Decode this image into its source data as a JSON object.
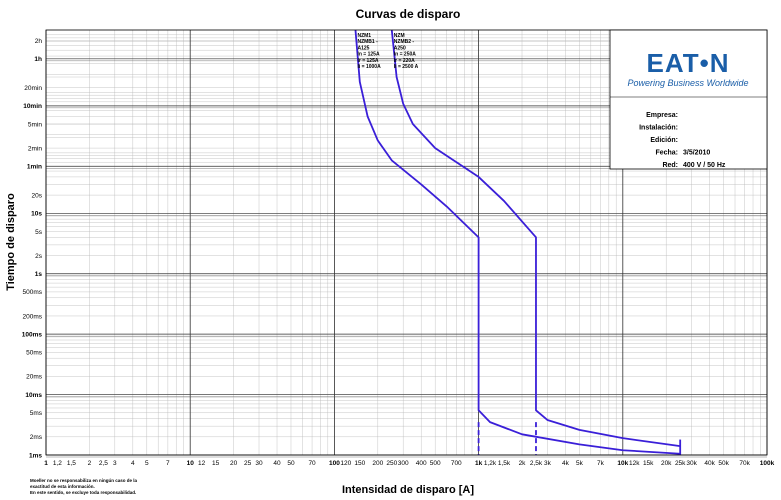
{
  "chart_data": {
    "type": "line",
    "title": "Curvas de disparo",
    "xlabel": "Intensidad de disparo [A]",
    "ylabel": "Tiempo de disparo",
    "x_scale": "log",
    "y_scale": "log",
    "xlim": [
      1,
      100000
    ],
    "ylim_seconds": [
      0.001,
      10800
    ],
    "grid": true,
    "x_ticks": [
      {
        "v": 1,
        "label": "1",
        "major": true
      },
      {
        "v": 1.2,
        "label": "1,2"
      },
      {
        "v": 1.5,
        "label": "1,5"
      },
      {
        "v": 2,
        "label": "2"
      },
      {
        "v": 2.5,
        "label": "2,5"
      },
      {
        "v": 3,
        "label": "3"
      },
      {
        "v": 4,
        "label": "4"
      },
      {
        "v": 5,
        "label": "5"
      },
      {
        "v": 7,
        "label": "7"
      },
      {
        "v": 10,
        "label": "10",
        "major": true
      },
      {
        "v": 12,
        "label": "12"
      },
      {
        "v": 15,
        "label": "15"
      },
      {
        "v": 20,
        "label": "20"
      },
      {
        "v": 25,
        "label": "25"
      },
      {
        "v": 30,
        "label": "30"
      },
      {
        "v": 40,
        "label": "40"
      },
      {
        "v": 50,
        "label": "50"
      },
      {
        "v": 70,
        "label": "70"
      },
      {
        "v": 100,
        "label": "100",
        "major": true
      },
      {
        "v": 120,
        "label": "120"
      },
      {
        "v": 150,
        "label": "150"
      },
      {
        "v": 200,
        "label": "200"
      },
      {
        "v": 250,
        "label": "250"
      },
      {
        "v": 300,
        "label": "300"
      },
      {
        "v": 400,
        "label": "400"
      },
      {
        "v": 500,
        "label": "500"
      },
      {
        "v": 700,
        "label": "700"
      },
      {
        "v": 1000,
        "label": "1k",
        "major": true
      },
      {
        "v": 1200,
        "label": "1,2k"
      },
      {
        "v": 1500,
        "label": "1,5k"
      },
      {
        "v": 2000,
        "label": "2k"
      },
      {
        "v": 2500,
        "label": "2,5k"
      },
      {
        "v": 3000,
        "label": "3k"
      },
      {
        "v": 4000,
        "label": "4k"
      },
      {
        "v": 5000,
        "label": "5k"
      },
      {
        "v": 7000,
        "label": "7k"
      },
      {
        "v": 10000,
        "label": "10k",
        "major": true
      },
      {
        "v": 12000,
        "label": "12k"
      },
      {
        "v": 15000,
        "label": "15k"
      },
      {
        "v": 20000,
        "label": "20k"
      },
      {
        "v": 25000,
        "label": "25k"
      },
      {
        "v": 30000,
        "label": "30k"
      },
      {
        "v": 40000,
        "label": "40k"
      },
      {
        "v": 50000,
        "label": "50k"
      },
      {
        "v": 70000,
        "label": "70k"
      },
      {
        "v": 100000,
        "label": "100k",
        "major": true
      }
    ],
    "y_ticks": [
      {
        "v": 0.001,
        "label": "1ms",
        "major": true
      },
      {
        "v": 0.002,
        "label": "2ms"
      },
      {
        "v": 0.005,
        "label": "5ms"
      },
      {
        "v": 0.01,
        "label": "10ms",
        "major": true
      },
      {
        "v": 0.02,
        "label": "20ms"
      },
      {
        "v": 0.05,
        "label": "50ms"
      },
      {
        "v": 0.1,
        "label": "100ms",
        "major": true
      },
      {
        "v": 0.2,
        "label": "200ms"
      },
      {
        "v": 0.5,
        "label": "500ms"
      },
      {
        "v": 1,
        "label": "1s",
        "major": true
      },
      {
        "v": 2,
        "label": "2s"
      },
      {
        "v": 5,
        "label": "5s"
      },
      {
        "v": 10,
        "label": "10s",
        "major": true
      },
      {
        "v": 20,
        "label": "20s"
      },
      {
        "v": 60,
        "label": "1min",
        "major": true
      },
      {
        "v": 120,
        "label": "2min"
      },
      {
        "v": 300,
        "label": "5min"
      },
      {
        "v": 600,
        "label": "10min",
        "major": true
      },
      {
        "v": 1200,
        "label": "20min"
      },
      {
        "v": 3600,
        "label": "1h",
        "major": true
      },
      {
        "v": 7200,
        "label": "2h"
      }
    ],
    "series": [
      {
        "name": "NZM1 - NZMB1 - A125",
        "label_lines": [
          "NZM1",
          "NZMB1 -",
          "A125",
          "In = 125A",
          "Ir = 125A",
          "Ii = 1000A"
        ],
        "color": "#3a1fd8",
        "points": [
          [
            140,
            10800
          ],
          [
            150,
            1500
          ],
          [
            170,
            400
          ],
          [
            200,
            160
          ],
          [
            250,
            75
          ],
          [
            400,
            30
          ],
          [
            600,
            13
          ],
          [
            1000,
            4
          ],
          [
            1000,
            0.0055
          ],
          [
            1200,
            0.0035
          ],
          [
            2000,
            0.0022
          ],
          [
            5000,
            0.0015
          ],
          [
            10000,
            0.0012
          ],
          [
            25000,
            0.00105
          ]
        ]
      },
      {
        "name": "NZM - NZMB2 - A250",
        "label_lines": [
          "NZM",
          "NZMB2 -",
          "A250",
          "In = 250A",
          "Ir = 220A",
          "Ii = 2500 A"
        ],
        "color": "#3a1fd8",
        "points": [
          [
            250,
            10800
          ],
          [
            270,
            1800
          ],
          [
            300,
            650
          ],
          [
            350,
            300
          ],
          [
            500,
            120
          ],
          [
            1000,
            40
          ],
          [
            1500,
            16
          ],
          [
            2500,
            4
          ],
          [
            2500,
            0.0055
          ],
          [
            3000,
            0.0038
          ],
          [
            5000,
            0.0026
          ],
          [
            10000,
            0.0019
          ],
          [
            25000,
            0.0014
          ]
        ]
      }
    ]
  },
  "info_box": {
    "logo_text": "EAT•N",
    "tagline": "Powering Business Worldwide",
    "fields": [
      {
        "label": "Empresa:",
        "value": ""
      },
      {
        "label": "Instalación:",
        "value": ""
      },
      {
        "label": "Edición:",
        "value": ""
      },
      {
        "label": "Fecha:",
        "value": "3/5/2010"
      },
      {
        "label": "Red:",
        "value": "400 V / 50 Hz"
      }
    ]
  },
  "disclaimer": [
    "Moeller no se responsabiliza en ningún caso de la",
    "exactitud de esta información.",
    "En este sentido, se excluye toda responsabilidad."
  ]
}
